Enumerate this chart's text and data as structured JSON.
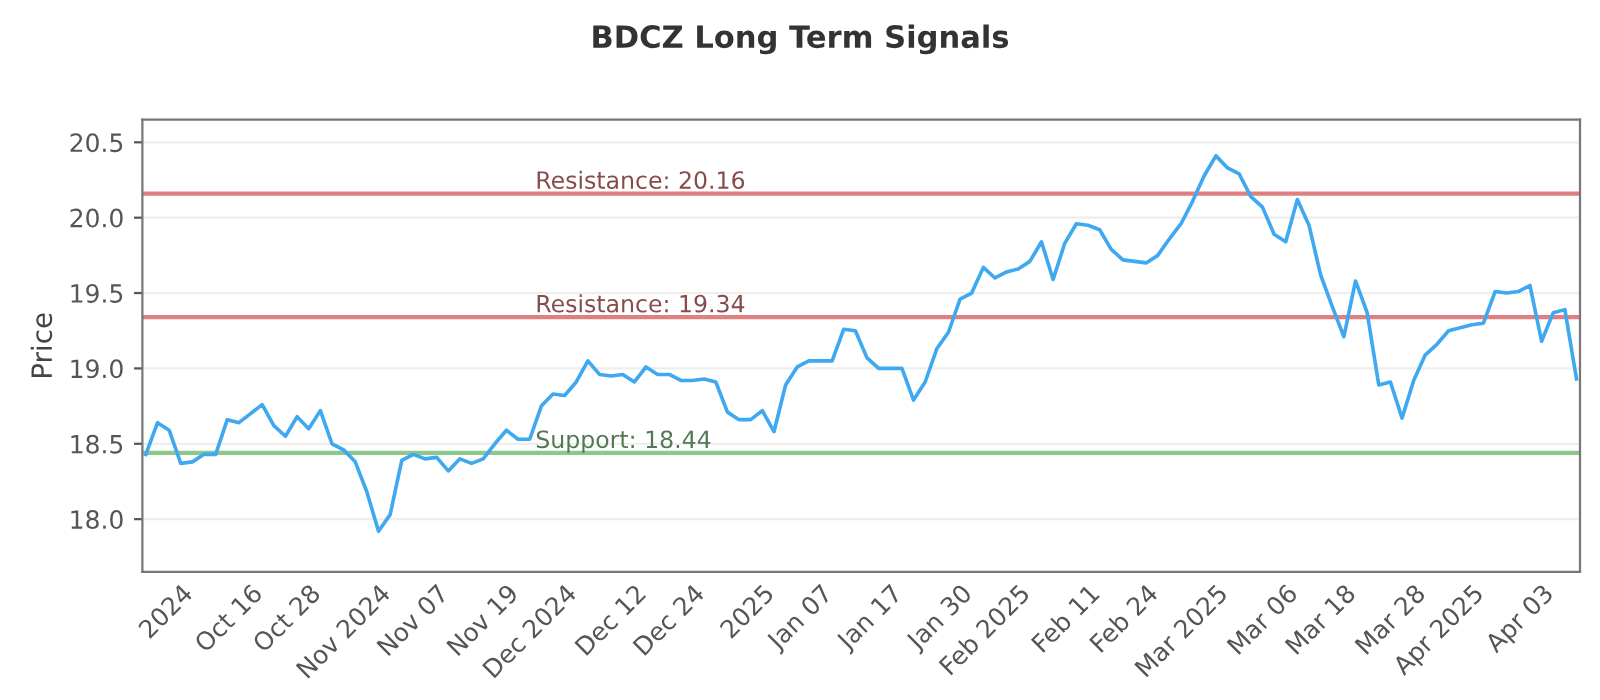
{
  "chart_data": {
    "type": "line",
    "title": "BDCZ Long Term Signals",
    "ylabel": "Price",
    "categories": [
      null,
      null,
      null,
      "2024",
      null,
      null,
      null,
      null,
      null,
      "Oct 16",
      null,
      null,
      null,
      null,
      "Oct 28",
      null,
      null,
      null,
      null,
      null,
      "Nov 2024",
      null,
      null,
      null,
      null,
      "Nov 07",
      null,
      null,
      null,
      null,
      null,
      "Nov 19",
      null,
      null,
      null,
      null,
      "Dec 2024",
      null,
      null,
      null,
      null,
      null,
      "Dec 12",
      null,
      null,
      null,
      null,
      "Dec 24",
      null,
      null,
      null,
      null,
      null,
      "2025",
      null,
      null,
      null,
      null,
      "Jan 07",
      null,
      null,
      null,
      null,
      null,
      "Jan 17",
      null,
      null,
      null,
      null,
      null,
      "Jan 30",
      null,
      null,
      null,
      null,
      "Feb 2025",
      null,
      null,
      null,
      null,
      null,
      "Feb 11",
      null,
      null,
      null,
      null,
      "Feb 24",
      null,
      null,
      null,
      null,
      null,
      "Mar 2025",
      null,
      null,
      null,
      null,
      null,
      "Mar 06",
      null,
      null,
      null,
      null,
      "Mar 18",
      null,
      null,
      null,
      null,
      null,
      "Mar 28",
      null,
      null,
      null,
      null,
      "Apr 2025",
      null,
      null,
      null,
      null,
      null,
      "Apr 03",
      null,
      null,
      null
    ],
    "series": [
      {
        "color": "#3ea8f0",
        "values": [
          18.43,
          18.64,
          18.59,
          18.37,
          18.38,
          18.43,
          18.43,
          18.66,
          18.64,
          18.7,
          18.76,
          18.62,
          18.55,
          18.68,
          18.6,
          18.72,
          18.5,
          18.46,
          18.38,
          18.18,
          17.92,
          18.03,
          18.39,
          18.43,
          18.4,
          18.41,
          18.32,
          18.4,
          18.37,
          18.4,
          18.5,
          18.59,
          18.53,
          18.53,
          18.75,
          18.83,
          18.82,
          18.91,
          19.05,
          18.96,
          18.95,
          18.96,
          18.91,
          19.01,
          18.96,
          18.96,
          18.92,
          18.92,
          18.93,
          18.91,
          18.71,
          18.66,
          18.66,
          18.72,
          18.58,
          18.89,
          19.01,
          19.05,
          19.05,
          19.05,
          19.26,
          19.25,
          19.07,
          19.0,
          19.0,
          19.0,
          18.79,
          18.91,
          19.13,
          19.24,
          19.46,
          19.5,
          19.67,
          19.6,
          19.64,
          19.66,
          19.71,
          19.84,
          19.59,
          19.83,
          19.96,
          19.95,
          19.92,
          19.79,
          19.72,
          19.71,
          19.7,
          19.75,
          19.86,
          19.96,
          20.11,
          20.28,
          20.41,
          20.33,
          20.29,
          20.14,
          20.07,
          19.89,
          19.84,
          20.12,
          19.95,
          19.62,
          19.41,
          19.21,
          19.58,
          19.37,
          18.89,
          18.91,
          18.67,
          18.92,
          19.09,
          19.16,
          19.25,
          19.27,
          19.29,
          19.3,
          19.51,
          19.5,
          19.51,
          19.55,
          19.18,
          19.37,
          19.39,
          18.93
        ]
      }
    ],
    "ylim": [
      17.65,
      20.65
    ],
    "yticks": [
      {
        "value": 18,
        "label": "18.0"
      },
      18.5,
      {
        "value": 19,
        "label": "19.0"
      },
      19.5,
      {
        "value": 20,
        "label": "20.0"
      },
      20.5
    ],
    "ref_lines": [
      {
        "axis": "y",
        "value": 20.16,
        "label": "Resistance: 20.16",
        "color": "#e07f7f"
      },
      {
        "axis": "y",
        "value": 19.34,
        "label": "Resistance: 19.34",
        "color": "#e07f7f"
      },
      {
        "axis": "y",
        "value": 18.44,
        "label": "Support: 18.44",
        "color": "#8cc88c"
      }
    ],
    "grid": "y",
    "marker": "none",
    "line_style": "solid"
  }
}
